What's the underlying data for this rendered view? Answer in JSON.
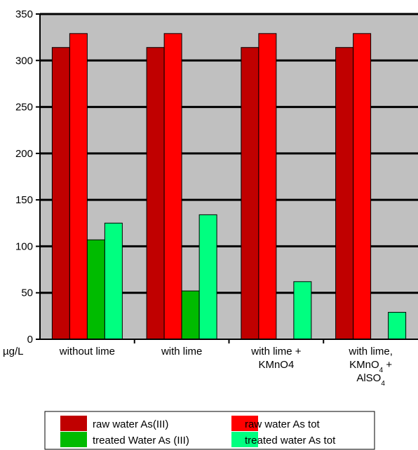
{
  "chart_data": {
    "type": "bar",
    "categories": [
      "without lime",
      "with lime",
      "with lime + KMnO4",
      "with lime, KMnO4 + AlSO4"
    ],
    "category_lines": [
      [
        [
          {
            "t": "without lime"
          }
        ]
      ],
      [
        [
          {
            "t": "with lime"
          }
        ]
      ],
      [
        [
          {
            "t": "with lime +"
          }
        ],
        [
          {
            "t": "KMnO4"
          }
        ]
      ],
      [
        [
          {
            "t": "with lime,"
          }
        ],
        [
          {
            "t": "KMnO"
          },
          {
            "t": "4",
            "sub": true
          },
          {
            "t": " +"
          }
        ],
        [
          {
            "t": "AlSO"
          },
          {
            "t": "4",
            "sub": true
          }
        ]
      ]
    ],
    "series": [
      {
        "name": "raw water As(III)",
        "color": "#c00000",
        "values": [
          314,
          314,
          314,
          314
        ]
      },
      {
        "name": "raw water As tot",
        "color": "#ff0000",
        "values": [
          329,
          329,
          329,
          329
        ]
      },
      {
        "name": "treated Water As (III)",
        "color": "#00bb00",
        "values": [
          107,
          52,
          null,
          null
        ]
      },
      {
        "name": "treated water As tot",
        "color": "#00ff80",
        "values": [
          125,
          134,
          62,
          29
        ]
      }
    ],
    "ylim": [
      0,
      350
    ],
    "yticks": [
      0,
      50,
      100,
      150,
      200,
      250,
      300,
      350
    ],
    "unit_label": "µg/L",
    "plot_background": "#c0c0c0",
    "grid": true,
    "legend_position": "bottom"
  }
}
